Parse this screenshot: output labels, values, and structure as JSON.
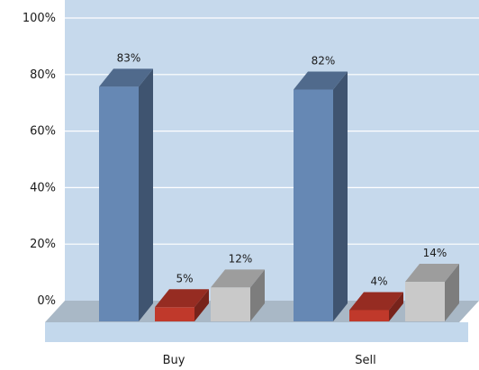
{
  "chart_data": {
    "type": "bar",
    "categories": [
      "Buy",
      "Sell"
    ],
    "series": [
      {
        "values": [
          83,
          82
        ],
        "data_labels": [
          "83%",
          "82%"
        ],
        "color": "#6688b4"
      },
      {
        "values": [
          5,
          4
        ],
        "data_labels": [
          "5%",
          "4%"
        ],
        "color": "#c0392b"
      },
      {
        "values": [
          12,
          14
        ],
        "data_labels": [
          "12%",
          "14%"
        ],
        "color": "#c9c9c9"
      }
    ],
    "y_ticks": [
      "0%",
      "20%",
      "40%",
      "60%",
      "80%",
      "100%"
    ],
    "ylim": [
      0,
      100
    ],
    "grid": true,
    "three_d": true,
    "colors": {
      "plot_background": "#c6d9ec",
      "gridline": "#ffffff",
      "floor_top": "#a9b8c6",
      "floor_front": "#c3d8ec"
    }
  }
}
